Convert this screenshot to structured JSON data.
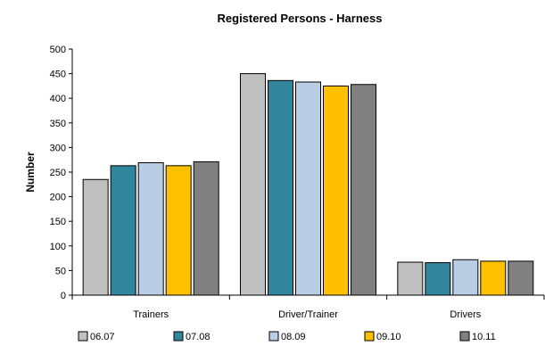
{
  "chart_data": {
    "type": "bar",
    "title": "Registered Persons - Harness",
    "xlabel": "",
    "ylabel": "Number",
    "ylim": [
      0,
      500
    ],
    "yticks": [
      0,
      50,
      100,
      150,
      200,
      250,
      300,
      350,
      400,
      450,
      500
    ],
    "categories": [
      "Trainers",
      "Driver/Trainer",
      "Drivers"
    ],
    "series": [
      {
        "name": "06.07",
        "color": "#c0c0c0",
        "values": [
          235,
          450,
          67
        ]
      },
      {
        "name": "07.08",
        "color": "#31859c",
        "values": [
          263,
          436,
          66
        ]
      },
      {
        "name": "08.09",
        "color": "#b9cde5",
        "values": [
          269,
          433,
          72
        ]
      },
      {
        "name": "09.10",
        "color": "#ffc000",
        "values": [
          263,
          425,
          69
        ]
      },
      {
        "name": "10.11",
        "color": "#808080",
        "values": [
          271,
          428,
          69
        ]
      }
    ],
    "grid": false,
    "legend": "bottom"
  }
}
